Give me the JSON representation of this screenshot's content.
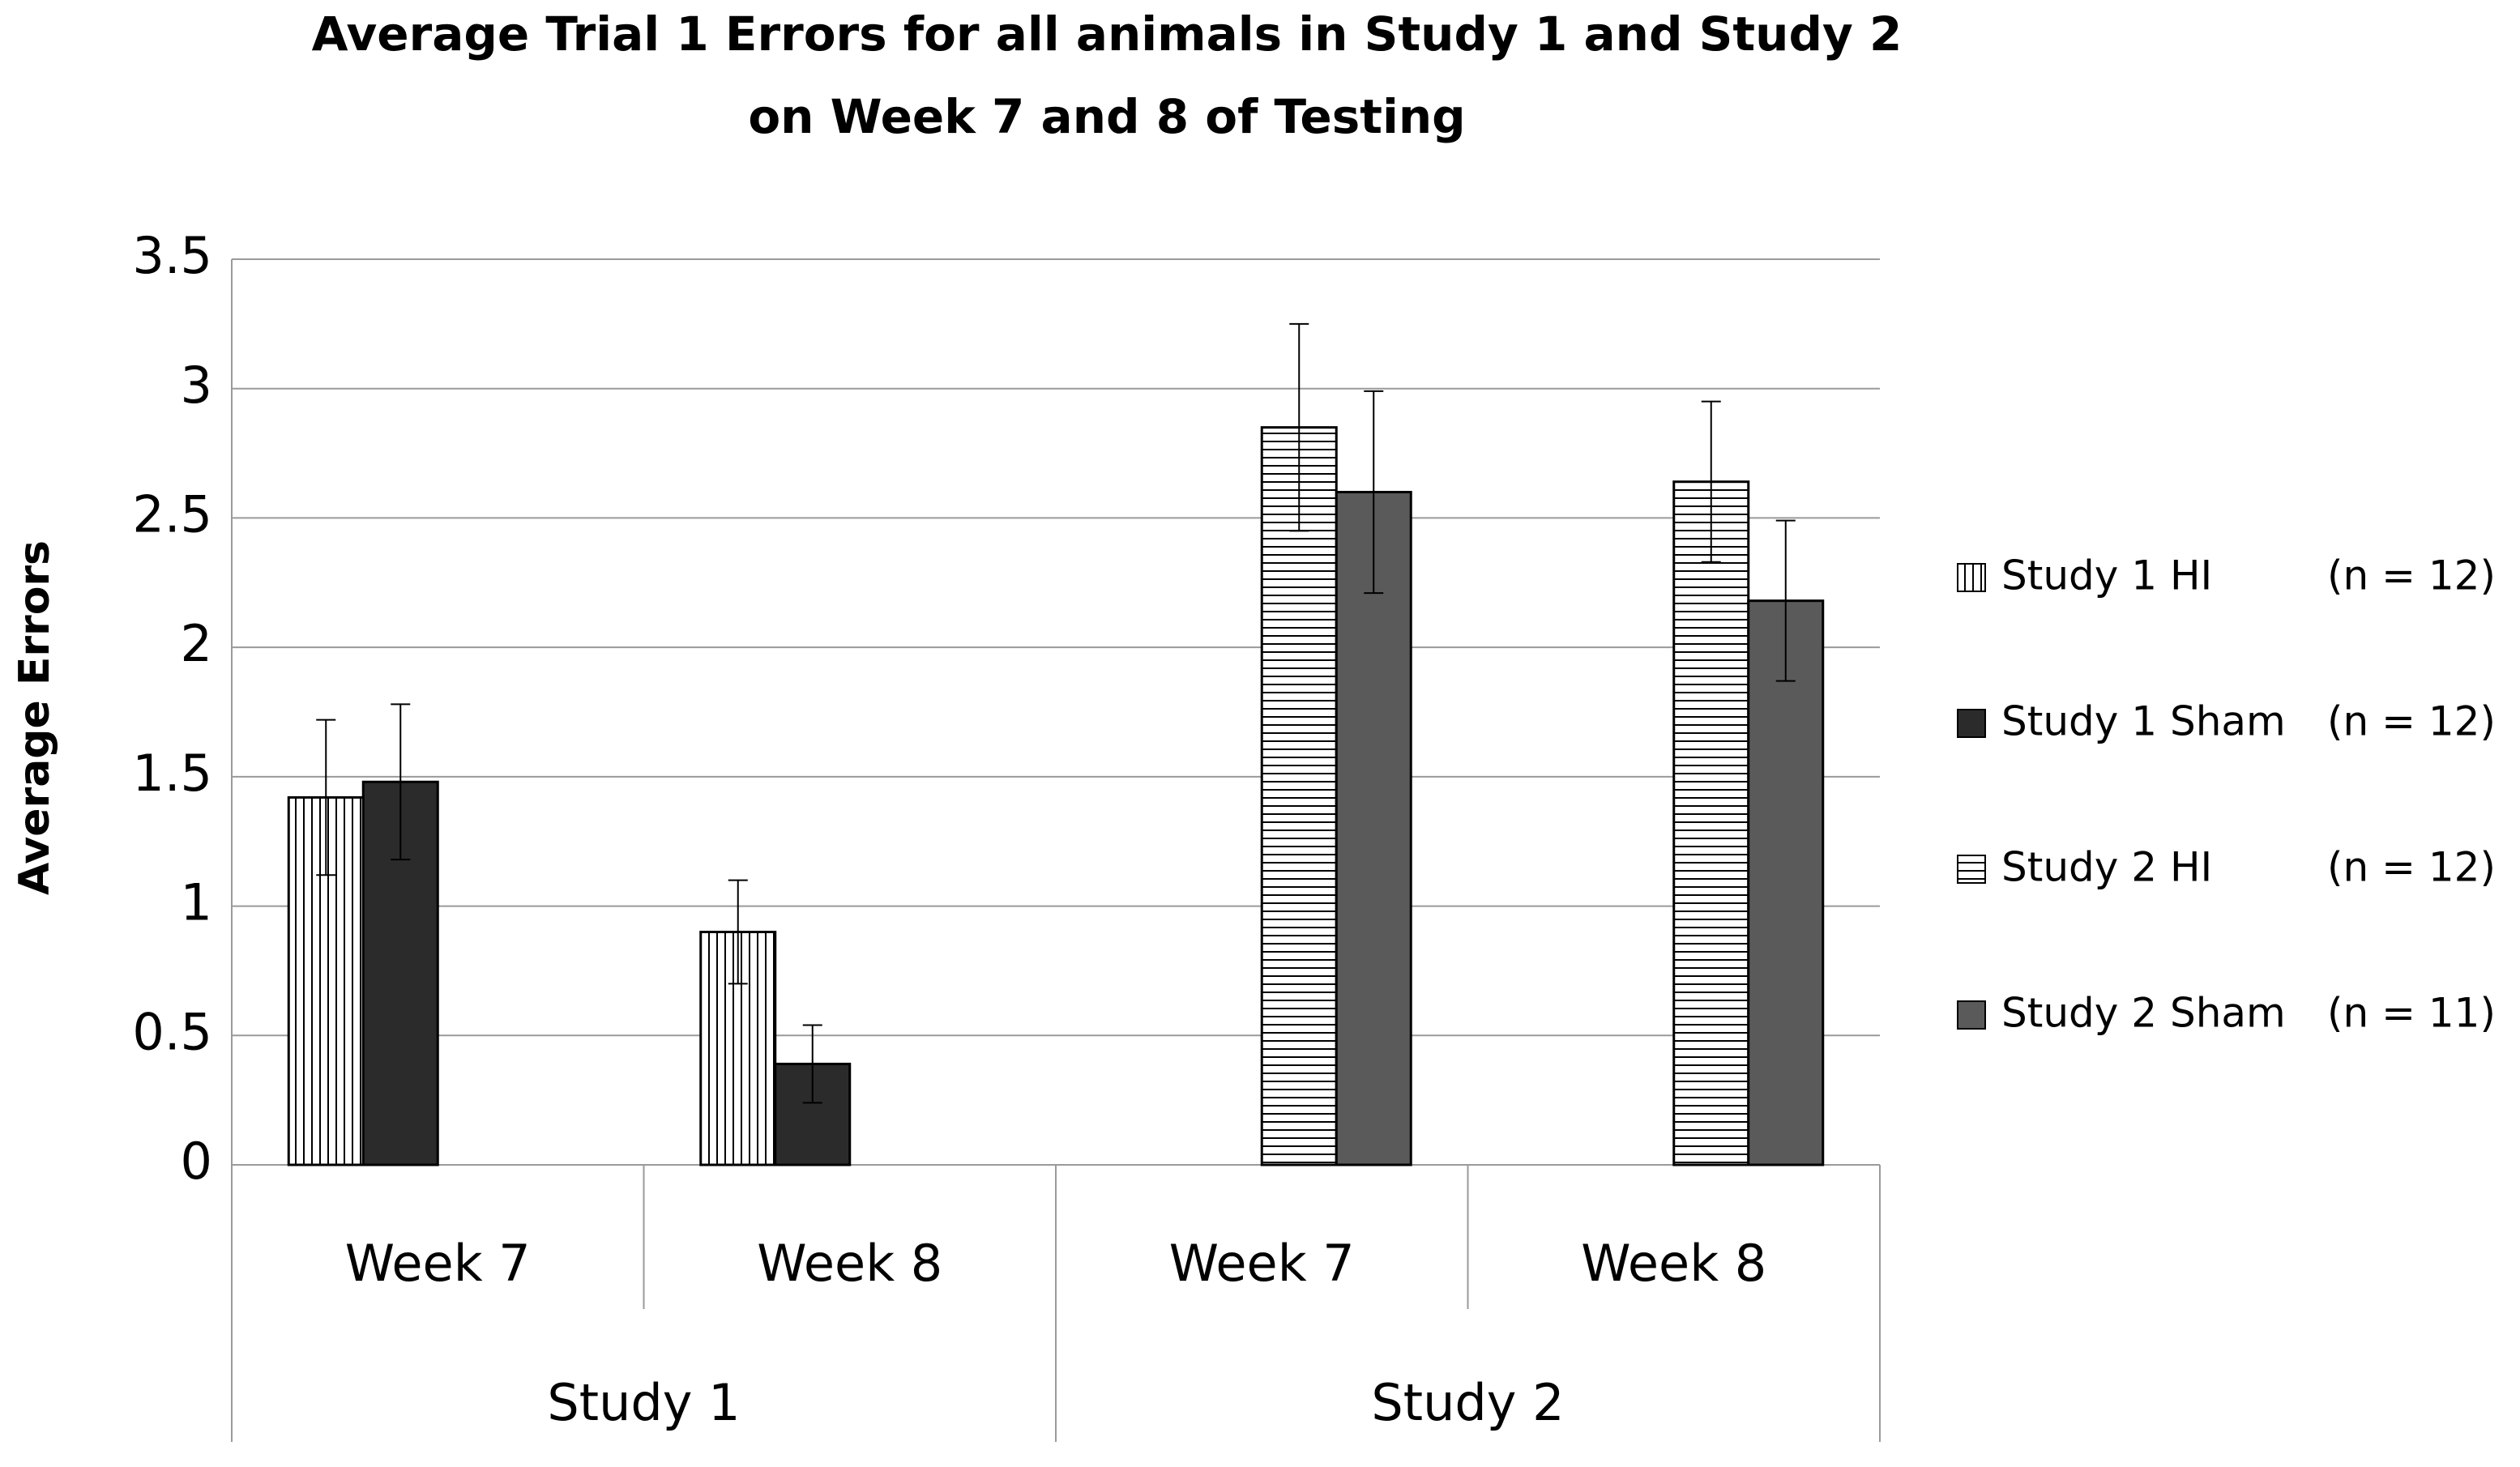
{
  "chart_data": {
    "type": "bar",
    "title": [
      "Average Trial 1 Errors for all animals in Study 1 and Study 2",
      "on Week 7 and 8 of Testing"
    ],
    "y_label": "Average Errors",
    "categories": [
      "Week 7",
      "Week 8",
      "Week 7",
      "Week 8"
    ],
    "groups": [
      "Study 1",
      "Study 2"
    ],
    "series": [
      {
        "name": "Study 1 HI",
        "note": "(n = 12)",
        "color": "#ffffff",
        "pattern": "vertical",
        "values": [
          1.42,
          0.9,
          null,
          null
        ],
        "errors": [
          0.3,
          0.2,
          null,
          null
        ]
      },
      {
        "name": "Study 1 Sham",
        "note": "(n = 12)",
        "color": "#2b2b2b",
        "values": [
          1.48,
          0.39,
          null,
          null
        ],
        "errors": [
          0.3,
          0.15,
          null,
          null
        ]
      },
      {
        "name": "Study 2 HI",
        "note": "(n = 12)",
        "color": "#ffffff",
        "pattern": "horizontal",
        "values": [
          null,
          null,
          2.85,
          2.64
        ],
        "errors": [
          null,
          null,
          0.4,
          0.31
        ]
      },
      {
        "name": "Study 2 Sham",
        "note": "(n = 11)",
        "color": "#5a5a5a",
        "values": [
          null,
          null,
          2.6,
          2.18
        ],
        "errors": [
          null,
          null,
          0.39,
          0.31
        ]
      }
    ],
    "ylim": [
      0,
      3.5
    ],
    "yticks": [
      0,
      0.5,
      1,
      1.5,
      2,
      2.5,
      3,
      3.5
    ],
    "grid": true
  }
}
